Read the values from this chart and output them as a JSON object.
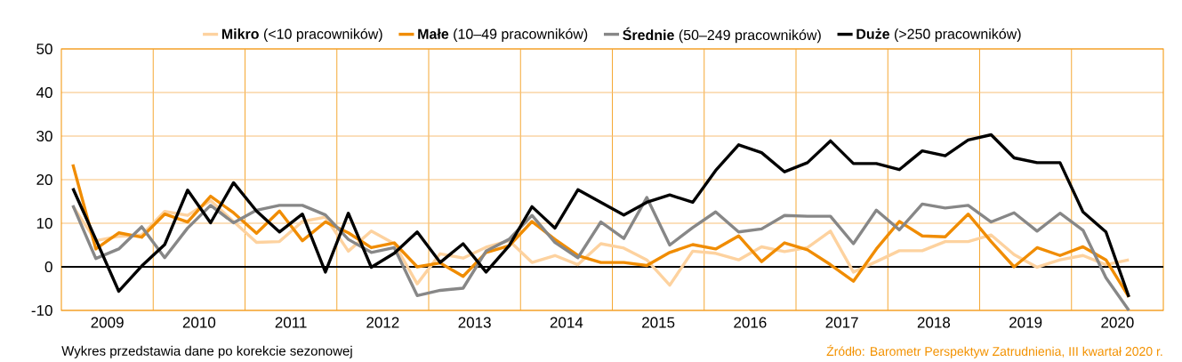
{
  "chart_data": {
    "type": "line",
    "x": [
      2009,
      2009.25,
      2009.5,
      2009.75,
      2010,
      2010.25,
      2010.5,
      2010.75,
      2011,
      2011.25,
      2011.5,
      2011.75,
      2012,
      2012.25,
      2012.5,
      2012.75,
      2013,
      2013.25,
      2013.5,
      2013.75,
      2014,
      2014.25,
      2014.5,
      2014.75,
      2015,
      2015.25,
      2015.5,
      2015.75,
      2016,
      2016.25,
      2016.5,
      2016.75,
      2017,
      2017.25,
      2017.5,
      2017.75,
      2018,
      2018.25,
      2018.5,
      2018.75,
      2019,
      2019.25,
      2019.5,
      2019.75,
      2020,
      2020.25,
      2020.5
    ],
    "series": [
      {
        "name": "**Mikro** (<10 pracowników)",
        "color": "#fdd29f",
        "values": [
          13.9,
          6.0,
          7.0,
          7.3,
          12.7,
          11.8,
          15.2,
          10.4,
          5.6,
          5.8,
          10.4,
          11.4,
          3.6,
          8.2,
          5.3,
          -3.9,
          3.0,
          2.0,
          4.5,
          6.0,
          1.0,
          2.6,
          0.5,
          5.3,
          4.3,
          1.6,
          -4.2,
          3.6,
          3.1,
          1.6,
          4.6,
          3.5,
          4.4,
          8.2,
          -1.2,
          1.2,
          3.7,
          3.7,
          5.8,
          5.8,
          7.3,
          2.8,
          -0.1,
          1.6,
          2.6,
          0.5,
          1.6
        ]
      },
      {
        "name": "**Małe** (10–49 pracowników)",
        "color": "#f08c00",
        "values": [
          23.5,
          4.1,
          7.8,
          6.8,
          12.1,
          10.3,
          16.2,
          12.4,
          7.7,
          12.8,
          6.0,
          10.3,
          7.8,
          4.4,
          5.5,
          0.0,
          0.9,
          -2.2,
          3.3,
          4.8,
          10.4,
          6.3,
          2.6,
          1.0,
          1.0,
          0.3,
          3.3,
          5.1,
          4.1,
          7.1,
          1.2,
          5.5,
          3.9,
          0.5,
          -3.3,
          4.1,
          10.4,
          7.1,
          6.9,
          12.1,
          5.8,
          0.0,
          4.4,
          2.6,
          4.6,
          1.6,
          -6.9
        ]
      },
      {
        "name": "**Średnie** (50–249 pracowników)",
        "color": "#878787",
        "values": [
          14.1,
          1.9,
          4.1,
          9.2,
          2.1,
          8.9,
          14.1,
          10.1,
          13.0,
          14.1,
          14.1,
          11.9,
          6.3,
          3.3,
          4.4,
          -6.6,
          -5.4,
          -4.9,
          3.6,
          6.3,
          11.8,
          5.6,
          2.1,
          10.3,
          6.5,
          15.9,
          5.0,
          9.0,
          12.6,
          8.0,
          8.7,
          11.8,
          11.6,
          11.6,
          5.3,
          13.0,
          8.5,
          14.4,
          13.5,
          14.1,
          10.3,
          12.4,
          8.2,
          12.3,
          8.4,
          -2.5,
          -10.0
        ]
      },
      {
        "name": "**Duże** (>250 pracowników)",
        "color": "#000000",
        "values": [
          18.0,
          6.3,
          -5.6,
          0.2,
          5.1,
          17.6,
          10.1,
          19.3,
          12.8,
          8.0,
          12.1,
          -1.2,
          12.3,
          -0.1,
          3.1,
          8.0,
          1.0,
          5.3,
          -1.2,
          4.8,
          13.8,
          8.9,
          17.7,
          14.8,
          11.9,
          14.8,
          16.5,
          14.8,
          22.1,
          28.0,
          26.2,
          21.8,
          23.9,
          28.9,
          23.7,
          23.7,
          22.3,
          26.6,
          25.5,
          29.1,
          30.3,
          25.0,
          23.9,
          23.9,
          12.6,
          8.0,
          -6.9
        ]
      }
    ],
    "xlim": [
      2008.875,
      2020.875
    ],
    "xticks": [
      {
        "value": 2009.375,
        "label": "2009"
      },
      {
        "value": 2010.375,
        "label": "2010"
      },
      {
        "value": 2011.375,
        "label": "2011"
      },
      {
        "value": 2012.375,
        "label": "2012"
      },
      {
        "value": 2013.375,
        "label": "2013"
      },
      {
        "value": 2014.375,
        "label": "2014"
      },
      {
        "value": 2015.375,
        "label": "2015"
      },
      {
        "value": 2016.375,
        "label": "2016"
      },
      {
        "value": 2017.375,
        "label": "2017"
      },
      {
        "value": 2018.375,
        "label": "2018"
      },
      {
        "value": 2019.375,
        "label": "2019"
      },
      {
        "value": 2020.375,
        "label": "2020"
      },
      {
        "value": 2009.875,
        "label": null
      },
      {
        "value": 2010.875,
        "label": null
      },
      {
        "value": 2011.875,
        "label": null
      },
      {
        "value": 2012.875,
        "label": null
      },
      {
        "value": 2013.875,
        "label": null
      },
      {
        "value": 2014.875,
        "label": null
      },
      {
        "value": 2015.875,
        "label": null
      },
      {
        "value": 2016.875,
        "label": null
      },
      {
        "value": 2017.875,
        "label": null
      },
      {
        "value": 2018.875,
        "label": null
      },
      {
        "value": 2019.875,
        "label": null
      }
    ],
    "ylim": [
      -10,
      50
    ],
    "yticks": [
      -10,
      0,
      10,
      20,
      30,
      40,
      50
    ],
    "grid": true,
    "legend": "top",
    "ref_lines": [
      {
        "axis": "y",
        "value": 0,
        "color": "#000000"
      }
    ],
    "annotations": [
      "Wykres przedstawia dane po korekcie sezonowej",
      "Źródło: Barometr Perspektyw Zatrudnienia, III kwartał 2020 r."
    ]
  }
}
